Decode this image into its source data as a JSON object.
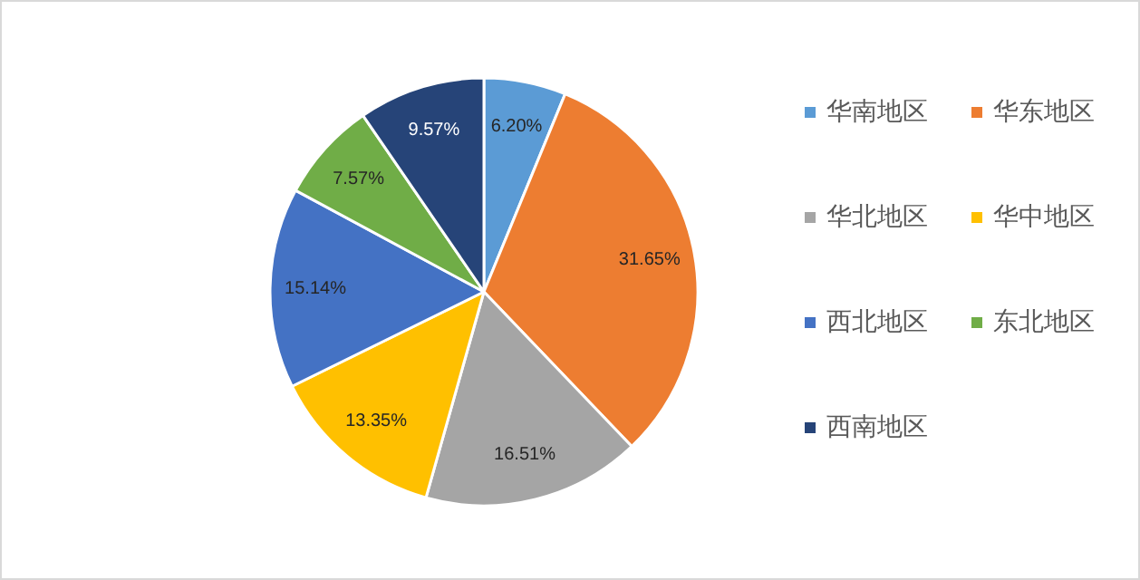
{
  "chart_data": {
    "type": "pie",
    "categories": [
      "华南地区",
      "华东地区",
      "华北地区",
      "华中地区",
      "西北地区",
      "东北地区",
      "西南地区"
    ],
    "values": [
      6.2,
      31.65,
      16.51,
      13.35,
      15.14,
      7.57,
      9.57
    ],
    "value_labels": [
      "6.20%",
      "31.65%",
      "16.51%",
      "13.35%",
      "15.14%",
      "7.57%",
      "9.57%"
    ],
    "colors": [
      "#5b9bd5",
      "#ed7d31",
      "#a5a5a5",
      "#ffc000",
      "#4472c4",
      "#70ad47",
      "#264478"
    ],
    "legend": "right"
  }
}
